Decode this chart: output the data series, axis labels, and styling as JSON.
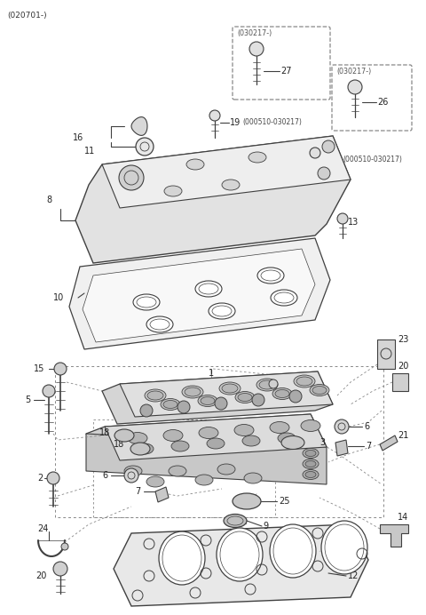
{
  "bg_color": "#ffffff",
  "lc": "#404040",
  "dc": "#888888",
  "figsize": [
    4.8,
    6.92
  ],
  "dpi": 100,
  "top_label": "(020701-)",
  "box27_label": "(030217-)",
  "box26_label": "(030217-)",
  "label19a": "19",
  "label19b_text": "(000510-030217)",
  "label19c": "19",
  "label19d_text": "(000510-030217)"
}
